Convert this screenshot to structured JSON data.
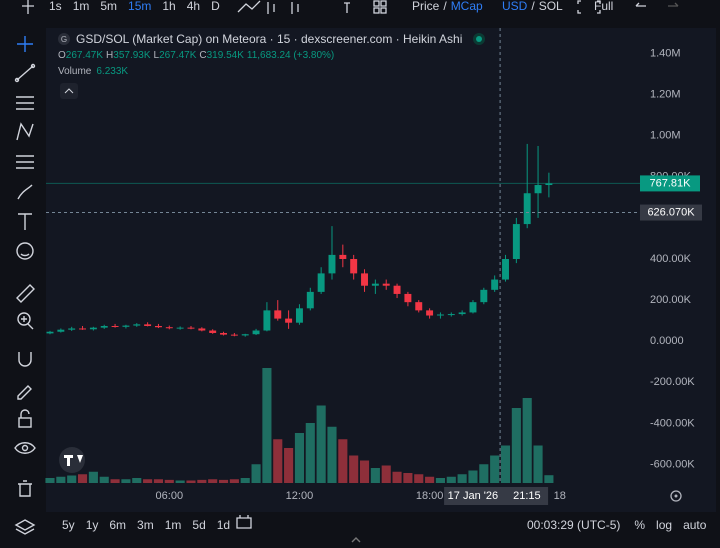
{
  "toolbar": {
    "intervals": [
      {
        "label": "1s"
      },
      {
        "label": "1m"
      },
      {
        "label": "5m"
      },
      {
        "label": "15m",
        "active": true
      },
      {
        "label": "1h"
      },
      {
        "label": "4h"
      },
      {
        "label": "D"
      }
    ],
    "price_mode": {
      "options": [
        "Price",
        "MCap"
      ],
      "separator": "/",
      "active": 1
    },
    "currency": {
      "options": [
        "USD",
        "SOL"
      ],
      "separator": "/",
      "active": 0
    },
    "fullscreen": "Full",
    "active_color": "#2f7ef6"
  },
  "legend": {
    "symbol_icon": "G",
    "title": "GSD/SOL (Market Cap) on Meteora · 15 · dexscreener.com · Heikin Ashi",
    "ohlc": [
      {
        "key": "O",
        "value": "267.47K"
      },
      {
        "key": "H",
        "value": "357.93K"
      },
      {
        "key": "L",
        "value": "267.47K"
      },
      {
        "key": "C",
        "value": "319.54K"
      }
    ],
    "change": "11,683.24 (+3.80%)",
    "volume": {
      "label": "Volume",
      "value": "6.233K"
    }
  },
  "chart_data": {
    "type": "candlestick",
    "x": [
      0.5,
      1,
      1.5,
      2,
      2.5,
      3,
      3.5,
      4,
      4.5,
      5,
      5.5,
      6,
      6.5,
      7,
      7.5,
      8,
      8.5,
      9,
      9.5,
      10,
      10.5,
      11,
      11.5,
      12,
      12.5,
      13,
      13.5,
      14,
      14.5,
      15,
      15.5,
      16,
      16.5,
      17,
      17.5,
      18,
      18.5,
      19,
      19.5,
      20,
      20.5,
      21,
      21.5,
      22,
      22.5,
      23,
      23.5
    ],
    "open": [
      38000,
      46000,
      56000,
      62000,
      58000,
      66000,
      74000,
      70000,
      76000,
      82000,
      74000,
      68000,
      64000,
      66000,
      62000,
      52000,
      40000,
      32000,
      28000,
      34000,
      52000,
      150000,
      110000,
      90000,
      160000,
      240000,
      330000,
      420000,
      400000,
      330000,
      270000,
      280000,
      270000,
      230000,
      190000,
      150000,
      125000,
      130000,
      132000,
      140000,
      190000,
      250000,
      300000,
      400000,
      570000,
      720000,
      760000
    ],
    "high": [
      50000,
      62000,
      70000,
      74000,
      70000,
      80000,
      84000,
      80000,
      88000,
      92000,
      84000,
      76000,
      72000,
      74000,
      68000,
      58000,
      46000,
      40000,
      36000,
      60000,
      190000,
      200000,
      150000,
      180000,
      260000,
      360000,
      560000,
      470000,
      420000,
      350000,
      300000,
      300000,
      280000,
      240000,
      200000,
      160000,
      140000,
      140000,
      150000,
      200000,
      260000,
      320000,
      420000,
      600000,
      960000,
      950000,
      820000
    ],
    "low": [
      34000,
      42000,
      50000,
      55000,
      52000,
      60000,
      66000,
      62000,
      70000,
      72000,
      64000,
      58000,
      56000,
      58000,
      48000,
      36000,
      28000,
      24000,
      22000,
      30000,
      48000,
      100000,
      60000,
      80000,
      150000,
      230000,
      300000,
      360000,
      300000,
      240000,
      230000,
      250000,
      210000,
      170000,
      140000,
      110000,
      110000,
      120000,
      125000,
      135000,
      180000,
      240000,
      290000,
      380000,
      550000,
      600000,
      700000
    ],
    "close": [
      46000,
      56000,
      62000,
      58000,
      66000,
      74000,
      70000,
      76000,
      82000,
      74000,
      68000,
      64000,
      66000,
      62000,
      52000,
      40000,
      32000,
      28000,
      34000,
      52000,
      150000,
      110000,
      90000,
      160000,
      240000,
      330000,
      420000,
      400000,
      330000,
      270000,
      280000,
      270000,
      230000,
      190000,
      150000,
      125000,
      130000,
      132000,
      140000,
      190000,
      250000,
      300000,
      400000,
      570000,
      720000,
      760000,
      767810
    ],
    "volume": [
      4000,
      5000,
      6000,
      7000,
      9000,
      5000,
      3000,
      3000,
      4000,
      3000,
      3000,
      2500,
      2000,
      2000,
      2500,
      3000,
      2500,
      3000,
      4000,
      15000,
      92000,
      35000,
      28000,
      40000,
      48000,
      62000,
      45000,
      35000,
      22000,
      18000,
      12000,
      14000,
      9000,
      8000,
      7000,
      5000,
      4000,
      5000,
      7000,
      10000,
      15000,
      22000,
      30000,
      60000,
      68000,
      30000,
      6233
    ],
    "up_color": "#089981",
    "down_color": "#f23645",
    "volume_up_color": "#1f6e62",
    "volume_down_color": "#8e2f3a",
    "xlim": [
      0.5,
      27.7
    ],
    "xticks": [
      {
        "value": 6,
        "label": "06:00"
      },
      {
        "value": 12,
        "label": "12:00"
      },
      {
        "value": 18,
        "label": "18:00"
      },
      {
        "value": 24,
        "label": "18"
      }
    ],
    "ylim": [
      -690000,
      1490000
    ],
    "yticks": [
      {
        "value": 1400000,
        "label": "1.40M"
      },
      {
        "value": 1200000,
        "label": "1.20M"
      },
      {
        "value": 1000000,
        "label": "1.00M"
      },
      {
        "value": 800000,
        "label": "800.00K"
      },
      {
        "value": 400000,
        "label": "400.00K"
      },
      {
        "value": 200000,
        "label": "200.00K"
      },
      {
        "value": 0,
        "label": "0.0000"
      },
      {
        "value": -200000,
        "label": "-200.00K"
      },
      {
        "value": -400000,
        "label": "-400.00K"
      },
      {
        "value": -600000,
        "label": "-600.00K"
      }
    ],
    "vlim": [
      0,
      100000
    ],
    "grid": false,
    "last_price": {
      "value": 767810,
      "label": "767.81K",
      "color": "#089981"
    },
    "crosshair": {
      "y": {
        "value": 626070,
        "label": "626.070K"
      },
      "x": {
        "value": 21.25,
        "date": "17 Jan '26",
        "time": "21:15"
      }
    }
  },
  "bottom_bar": {
    "ranges": [
      "5y",
      "1y",
      "6m",
      "3m",
      "1m",
      "5d",
      "1d"
    ],
    "clock": "00:03:29 (UTC-5)",
    "options": [
      "%",
      "log",
      "auto"
    ]
  }
}
